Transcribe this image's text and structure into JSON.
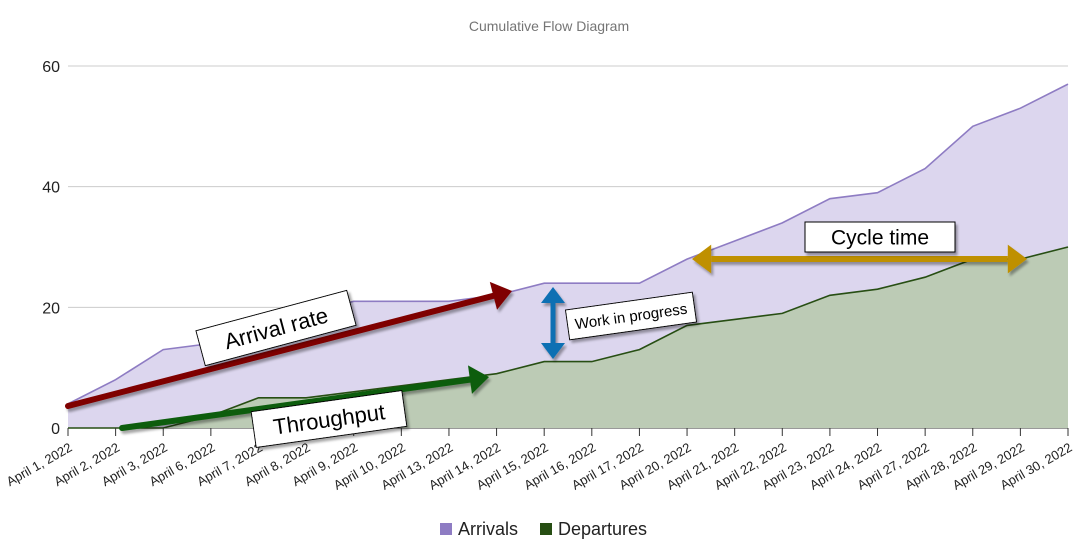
{
  "chart_data": {
    "type": "area",
    "title": "Cumulative Flow Diagram",
    "xlabel": "",
    "ylabel": "",
    "ylim": [
      0,
      60
    ],
    "yticks": [
      0,
      20,
      40,
      60
    ],
    "grid": true,
    "legend_position": "bottom",
    "categories": [
      "April 1, 2022",
      "April 2, 2022",
      "April 3, 2022",
      "April 6, 2022",
      "April 7, 2022",
      "April 8, 2022",
      "April 9, 2022",
      "April 10, 2022",
      "April 13, 2022",
      "April 14, 2022",
      "April 15, 2022",
      "April 16, 2022",
      "April 17, 2022",
      "April 20, 2022",
      "April 21, 2022",
      "April 22, 2022",
      "April 23, 2022",
      "April 24, 2022",
      "April 27, 2022",
      "April 28, 2022",
      "April 29, 2022",
      "April 30, 2022"
    ],
    "series": [
      {
        "name": "Arrivals",
        "color": "#8e7cc3",
        "fill": "#dcd6ee",
        "values": [
          4,
          8,
          13,
          14,
          17,
          19,
          21,
          21,
          21,
          22,
          24,
          24,
          24,
          28,
          31,
          34,
          38,
          39,
          43,
          50,
          53,
          57
        ]
      },
      {
        "name": "Departures",
        "color": "#274e13",
        "fill": "#bccbb5",
        "values": [
          0,
          0,
          0,
          2,
          5,
          5,
          6,
          7,
          8,
          9,
          11,
          11,
          13,
          17,
          18,
          19,
          22,
          23,
          25,
          28,
          28,
          30
        ]
      }
    ],
    "annotations": [
      {
        "label": "Arrival rate",
        "color": "#7f0000"
      },
      {
        "label": "Throughput",
        "color": "#0b5d0b"
      },
      {
        "label": "Work in progress",
        "color": "#0b6fb3"
      },
      {
        "label": "Cycle time",
        "color": "#bf9000"
      }
    ]
  }
}
